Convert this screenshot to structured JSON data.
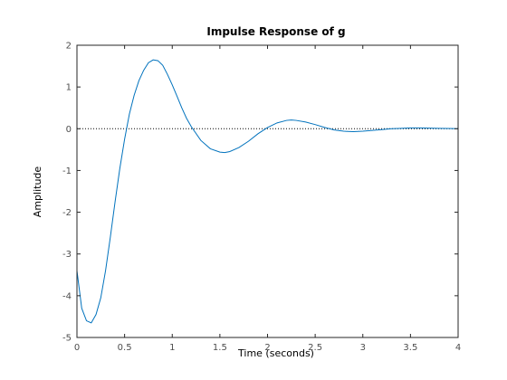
{
  "chart_data": {
    "type": "line",
    "title": "Impulse Response of g",
    "xlabel": "Time (seconds)",
    "ylabel": "Amplitude",
    "xlim": [
      0,
      4
    ],
    "ylim": [
      -5,
      2
    ],
    "xticks": [
      "0",
      "0.5",
      "1",
      "1.5",
      "2",
      "2.5",
      "3",
      "3.5",
      "4"
    ],
    "yticks": [
      "-5",
      "-4",
      "-3",
      "-2",
      "-1",
      "0",
      "1",
      "2"
    ],
    "grid": false,
    "legend": "none",
    "reference_line": {
      "y": 0,
      "style": "dotted"
    },
    "series": [
      {
        "color": "#0072bd",
        "x": [
          0,
          0.05,
          0.1,
          0.15,
          0.2,
          0.25,
          0.3,
          0.35,
          0.4,
          0.45,
          0.5,
          0.55,
          0.6,
          0.65,
          0.7,
          0.75,
          0.8,
          0.85,
          0.9,
          0.95,
          1.0,
          1.05,
          1.1,
          1.15,
          1.2,
          1.3,
          1.4,
          1.5,
          1.55,
          1.6,
          1.7,
          1.8,
          1.9,
          2.0,
          2.1,
          2.2,
          2.25,
          2.3,
          2.4,
          2.5,
          2.6,
          2.7,
          2.8,
          2.9,
          3.0,
          3.1,
          3.2,
          3.3,
          3.4,
          3.5,
          3.6,
          3.7,
          3.8,
          3.9,
          4.0
        ],
        "y": [
          -3.4,
          -4.3,
          -4.6,
          -4.65,
          -4.45,
          -4.05,
          -3.4,
          -2.6,
          -1.75,
          -0.95,
          -0.25,
          0.35,
          0.8,
          1.15,
          1.4,
          1.58,
          1.65,
          1.63,
          1.52,
          1.3,
          1.05,
          0.78,
          0.5,
          0.25,
          0.05,
          -0.28,
          -0.48,
          -0.56,
          -0.57,
          -0.55,
          -0.45,
          -0.3,
          -0.12,
          0.03,
          0.14,
          0.2,
          0.21,
          0.2,
          0.16,
          0.1,
          0.03,
          -0.03,
          -0.06,
          -0.07,
          -0.06,
          -0.04,
          -0.02,
          0.0,
          0.01,
          0.02,
          0.02,
          0.015,
          0.01,
          0.005,
          0.0
        ]
      }
    ]
  }
}
